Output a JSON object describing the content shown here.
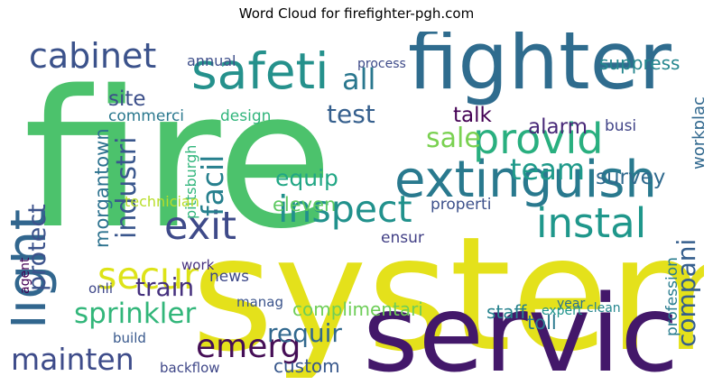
{
  "figure": {
    "title": "Word Cloud for firefighter-pgh.com"
  },
  "chart_data": {
    "type": "wordcloud",
    "title": "Word Cloud for firefighter-pgh.com",
    "words": [
      {
        "text": "fire",
        "color": "#4cc26c",
        "weight": 1.0
      },
      {
        "text": "system",
        "color": "#e4e11b",
        "weight": 0.95
      },
      {
        "text": "servic",
        "color": "#43186a",
        "weight": 0.86
      },
      {
        "text": "fighter",
        "color": "#2f6c8e",
        "weight": 0.73
      },
      {
        "text": "safeti",
        "color": "#25918c",
        "weight": 0.62
      },
      {
        "text": "extinguish",
        "color": "#29798e",
        "weight": 0.56
      },
      {
        "text": "light",
        "color": "#31668e",
        "weight": 0.5
      },
      {
        "text": "provid",
        "color": "#29af7f",
        "weight": 0.48
      },
      {
        "text": "inspect",
        "color": "#21918c",
        "weight": 0.46
      },
      {
        "text": "cabinet",
        "color": "#3b528b",
        "weight": 0.44
      },
      {
        "text": "exit",
        "color": "#3e4a89",
        "weight": 0.43
      },
      {
        "text": "instal",
        "color": "#1f978b",
        "weight": 0.42
      },
      {
        "text": "secur",
        "color": "#dde318",
        "weight": 0.41
      },
      {
        "text": "emerg",
        "color": "#450e56",
        "weight": 0.4
      },
      {
        "text": "sprinkler",
        "color": "#32b67a",
        "weight": 0.38
      },
      {
        "text": "mainten",
        "color": "#3e4c8a",
        "weight": 0.36
      },
      {
        "text": "facil",
        "color": "#27808e",
        "weight": 0.35
      },
      {
        "text": "train",
        "color": "#46317e",
        "weight": 0.34
      },
      {
        "text": "requir",
        "color": "#31688e",
        "weight": 0.32
      },
      {
        "text": "compani",
        "color": "#355e8d",
        "weight": 0.32
      },
      {
        "text": "industri",
        "color": "#39568c",
        "weight": 0.3
      },
      {
        "text": "team",
        "color": "#1f9a8a",
        "weight": 0.3
      },
      {
        "text": "all",
        "color": "#2a778e",
        "weight": 0.3
      },
      {
        "text": "sale",
        "color": "#7ad151",
        "weight": 0.29
      },
      {
        "text": "protect",
        "color": "#3b528b",
        "weight": 0.29
      },
      {
        "text": "test",
        "color": "#355f8d",
        "weight": 0.26
      },
      {
        "text": "equip",
        "color": "#22a785",
        "weight": 0.25
      },
      {
        "text": "survey",
        "color": "#306a8e",
        "weight": 0.24
      },
      {
        "text": "alarm",
        "color": "#482878",
        "weight": 0.24
      },
      {
        "text": "talk",
        "color": "#440154",
        "weight": 0.24
      },
      {
        "text": "morgantown",
        "color": "#2c728e",
        "weight": 0.23
      },
      {
        "text": "site",
        "color": "#3c4f8a",
        "weight": 0.23
      },
      {
        "text": "suppress",
        "color": "#24868e",
        "weight": 0.22
      },
      {
        "text": "complimentari",
        "color": "#6ece58",
        "weight": 0.21
      },
      {
        "text": "eleven",
        "color": "#5ec962",
        "weight": 0.21
      },
      {
        "text": "staff",
        "color": "#26828e",
        "weight": 0.2
      },
      {
        "text": "toll",
        "color": "#2a788e",
        "weight": 0.2
      },
      {
        "text": "custom",
        "color": "#38588c",
        "weight": 0.19
      },
      {
        "text": "workplac",
        "color": "#31688e",
        "weight": 0.18
      },
      {
        "text": "profession",
        "color": "#287c8e",
        "weight": 0.18
      },
      {
        "text": "busi",
        "color": "#414487",
        "weight": 0.17
      },
      {
        "text": "commerci",
        "color": "#2a788e",
        "weight": 0.17
      },
      {
        "text": "pittsburgh",
        "color": "#30b57b",
        "weight": 0.17
      },
      {
        "text": "technician",
        "color": "#b8de29",
        "weight": 0.17
      },
      {
        "text": "news",
        "color": "#3e4989",
        "weight": 0.17
      },
      {
        "text": "ensur",
        "color": "#424086",
        "weight": 0.16
      },
      {
        "text": "properti",
        "color": "#3c508b",
        "weight": 0.16
      },
      {
        "text": "design",
        "color": "#31b57b",
        "weight": 0.16
      },
      {
        "text": "annual",
        "color": "#3d4e8a",
        "weight": 0.15
      },
      {
        "text": "process",
        "color": "#3e4a89",
        "weight": 0.14
      },
      {
        "text": "backflow",
        "color": "#3f4788",
        "weight": 0.14
      },
      {
        "text": "build",
        "color": "#38588c",
        "weight": 0.14
      },
      {
        "text": "manag",
        "color": "#3a538b",
        "weight": 0.14
      },
      {
        "text": "onli",
        "color": "#3f4889",
        "weight": 0.14
      },
      {
        "text": "year",
        "color": "#2c728e",
        "weight": 0.14
      },
      {
        "text": "work",
        "color": "#46307e",
        "weight": 0.13
      },
      {
        "text": "clean",
        "color": "#24868e",
        "weight": 0.13
      },
      {
        "text": "expert",
        "color": "#1f948c",
        "weight": 0.13
      },
      {
        "text": "agent",
        "color": "#440154",
        "weight": 0.13
      }
    ]
  }
}
